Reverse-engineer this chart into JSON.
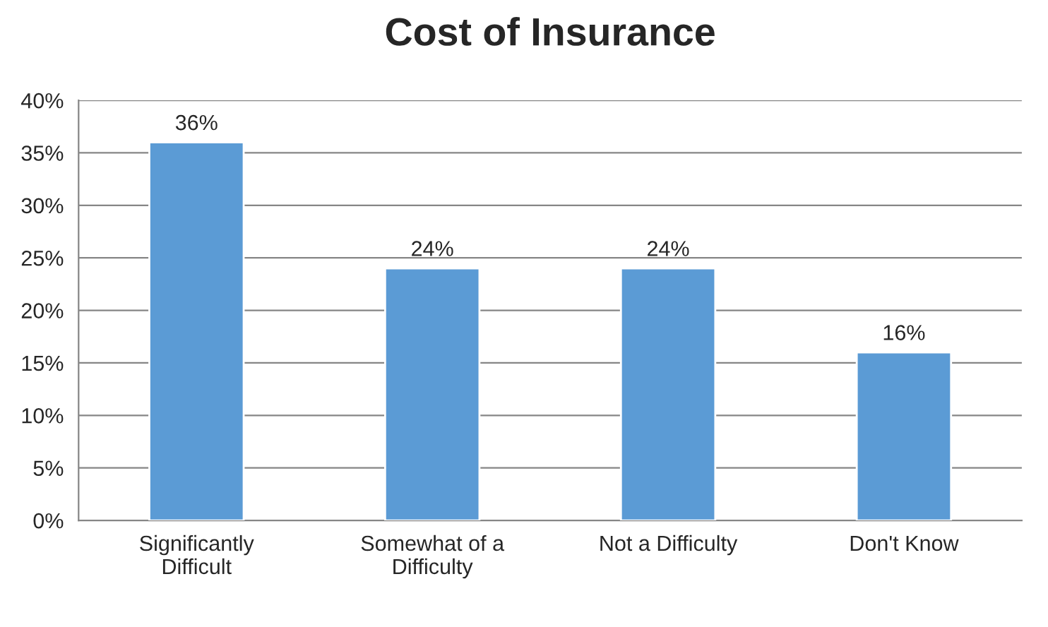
{
  "chart_data": {
    "type": "bar",
    "title": "Cost of Insurance",
    "categories": [
      "Significantly\nDifficult",
      "Somewhat of a\nDifficulty",
      "Not a Difficulty",
      "Don't Know"
    ],
    "values": [
      36,
      24,
      24,
      16
    ],
    "color": "#5b9bd5",
    "data_labels": true,
    "value_labels": [
      "36%",
      "24%",
      "24%",
      "16%"
    ],
    "ylim": [
      0,
      40
    ],
    "yticks": [
      {
        "value": 0,
        "label": "0%"
      },
      {
        "value": 5,
        "label": "5%"
      },
      {
        "value": 10,
        "label": "10%"
      },
      {
        "value": 15,
        "label": "15%"
      },
      {
        "value": 20,
        "label": "20%"
      },
      {
        "value": 25,
        "label": "25%"
      },
      {
        "value": 30,
        "label": "30%"
      },
      {
        "value": 35,
        "label": "35%"
      },
      {
        "value": 40,
        "label": "40%"
      }
    ],
    "grid": "y"
  }
}
